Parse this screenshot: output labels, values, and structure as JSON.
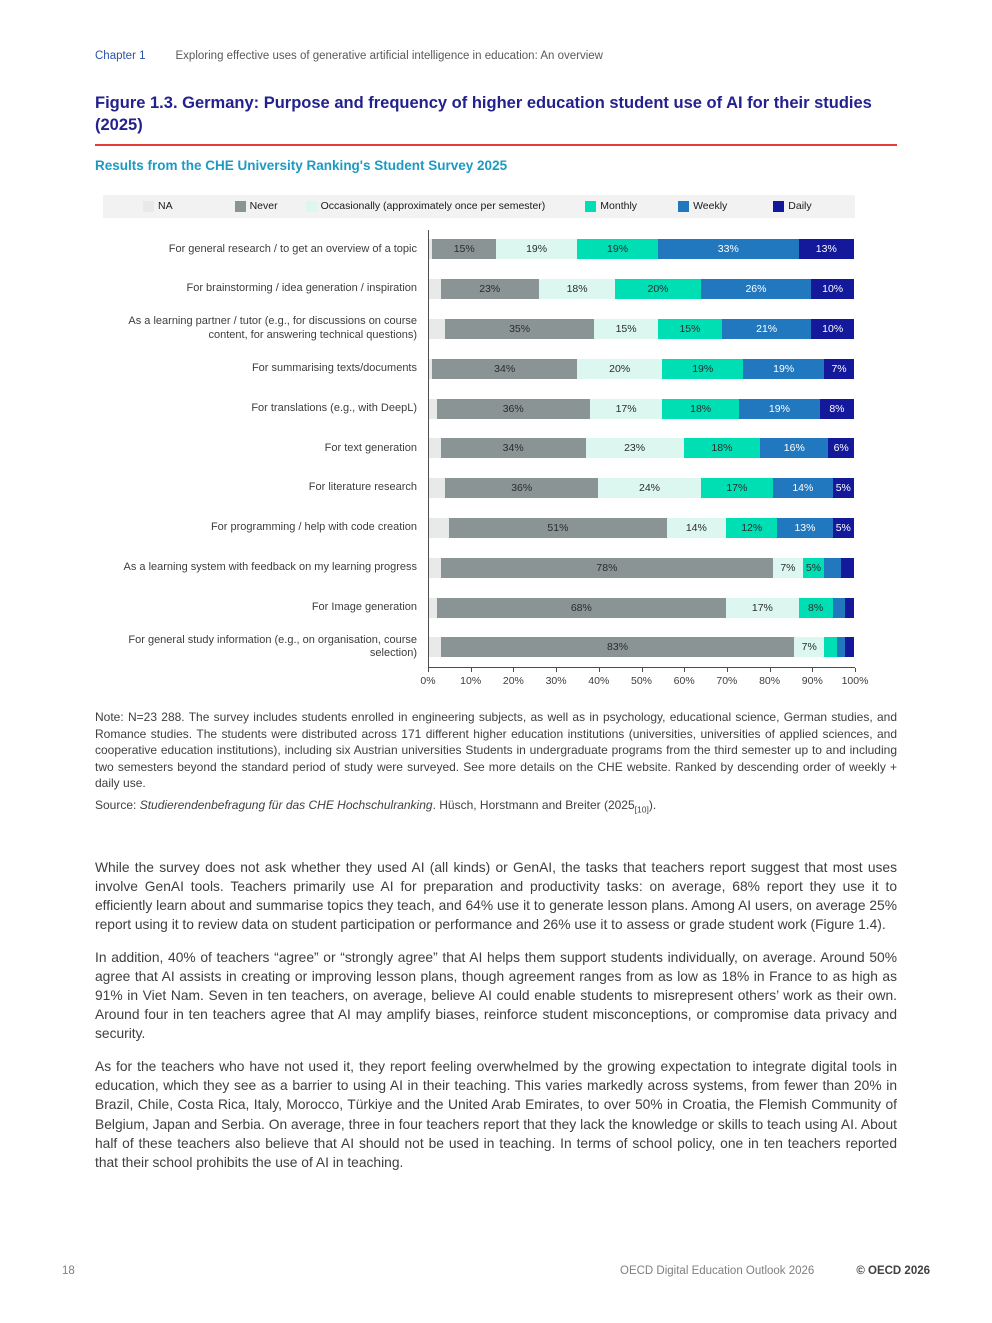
{
  "header": {
    "chapter_label": "Chapter 1",
    "chapter_title": "Exploring effective uses of generative artificial intelligence in education: An overview"
  },
  "figure": {
    "title": "Figure 1.3. Germany: Purpose and frequency of higher education student use of AI for their studies (2025)",
    "subtitle": "Results from the CHE University Ranking's Student Survey 2025"
  },
  "chart_data": {
    "type": "bar",
    "stacked": true,
    "orientation": "horizontal",
    "title": "Figure 1.3. Germany: Purpose and frequency of higher education student use of AI for their studies (2025)",
    "subtitle": "Results from the CHE University Ranking's Student Survey 2025",
    "legend_position": "top",
    "xlim": [
      0,
      100
    ],
    "x_ticks": [
      "0%",
      "10%",
      "20%",
      "30%",
      "40%",
      "50%",
      "60%",
      "70%",
      "80%",
      "90%",
      "100%"
    ],
    "label_threshold": 5,
    "categories": [
      "For general research / to get an overview of a topic",
      "For brainstorming / idea generation / inspiration",
      "As a learning partner / tutor (e.g., for discussions on course content, for answering technical questions)",
      "For summarising texts/documents",
      "For translations (e.g., with DeepL)",
      "For text generation",
      "For literature research",
      "For programming / help with code creation",
      "As a learning system with feedback on my learning progress",
      "For Image generation",
      "For general study information (e.g., on organisation, course selection)"
    ],
    "series": [
      {
        "name": "NA",
        "color": "#e8eae9",
        "label_color": "#3d3d3d",
        "show_labels": false,
        "values": [
          1,
          3,
          4,
          1,
          2,
          3,
          4,
          5,
          3,
          2,
          3
        ]
      },
      {
        "name": "Never",
        "color": "#8a9495",
        "label_color": "#2b2b2b",
        "show_labels": true,
        "values": [
          15,
          23,
          35,
          34,
          36,
          34,
          36,
          51,
          78,
          68,
          83
        ]
      },
      {
        "name": "Occasionally (approximately once per semester)",
        "color": "#dcf7ef",
        "label_color": "#2b2b2b",
        "show_labels": true,
        "values": [
          19,
          18,
          15,
          20,
          17,
          23,
          24,
          14,
          7,
          17,
          7
        ]
      },
      {
        "name": "Monthly",
        "color": "#00dfb4",
        "label_color": "#2b2b2b",
        "show_labels": true,
        "values": [
          19,
          20,
          15,
          19,
          18,
          18,
          17,
          12,
          5,
          8,
          3
        ]
      },
      {
        "name": "Weekly",
        "color": "#2278be",
        "label_color": "#ffffff",
        "show_labels": true,
        "values": [
          33,
          26,
          21,
          19,
          19,
          16,
          14,
          13,
          4,
          3,
          2
        ]
      },
      {
        "name": "Daily",
        "color": "#14189a",
        "label_color": "#ffffff",
        "show_labels": true,
        "values": [
          13,
          10,
          10,
          7,
          8,
          6,
          5,
          5,
          3,
          2,
          2
        ]
      }
    ]
  },
  "note": {
    "text": "Note: N=23 288. The survey includes students enrolled in engineering subjects, as well as in psychology, educational science, German studies, and Romance studies. The students were distributed across 171 different higher education institutions (universities, universities of applied sciences, and cooperative education institutions), including six Austrian universities Students in undergraduate programs from the third semester up to and including two semesters beyond the standard period of study were surveyed. See more details on the CHE website. Ranked by descending order of weekly + daily use."
  },
  "source": {
    "label": "Source: ",
    "title_italic": "Studierendenbefragung für das CHE Hochschulranking",
    "after": ". Hüsch, Horstmann and Breiter (2025",
    "ref_subscript": "[10]",
    "end": ")."
  },
  "body": {
    "paragraphs": [
      "While the survey does not ask whether they used AI (all kinds) or GenAI, the tasks that teachers report suggest that most uses involve GenAI tools. Teachers primarily use AI for preparation and productivity tasks: on average, 68% report they use it to efficiently learn about and summarise topics they teach, and 64% use it to generate lesson plans. Among AI users, on average 25% report using it to review data on student participation or performance and 26% use it to assess or grade student work (Figure 1.4).",
      "In addition, 40% of teachers “agree” or “strongly agree” that AI helps them support students individually, on average. Around 50% agree that AI assists in creating or improving lesson plans, though agreement ranges from as low as 18% in France to as high as 91% in Viet Nam. Seven in ten teachers, on average, believe AI could enable students to misrepresent others’ work as their own. Around four in ten teachers agree that AI may amplify biases, reinforce student misconceptions, or compromise data privacy and security.",
      "As for the teachers who have not used it, they report feeling overwhelmed by the growing expectation to integrate digital tools in education, which they see as a barrier to using AI in their teaching. This varies markedly across systems, from fewer than 20% in Brazil, Chile, Costa Rica, Italy, Morocco, Türkiye and the United Arab Emirates, to over 50% in Croatia, the Flemish Community of Belgium, Japan and Serbia. On average, three in four teachers report that they lack the knowledge or skills to teach using AI. About half of these teachers also believe that AI should not be used in teaching. In terms of school policy, one in ten teachers reported that their school prohibits the use of AI in teaching."
    ]
  },
  "footer": {
    "page_number": "18",
    "book_title": "OECD Digital Education Outlook 2026",
    "copyright": "© OECD 2026"
  }
}
